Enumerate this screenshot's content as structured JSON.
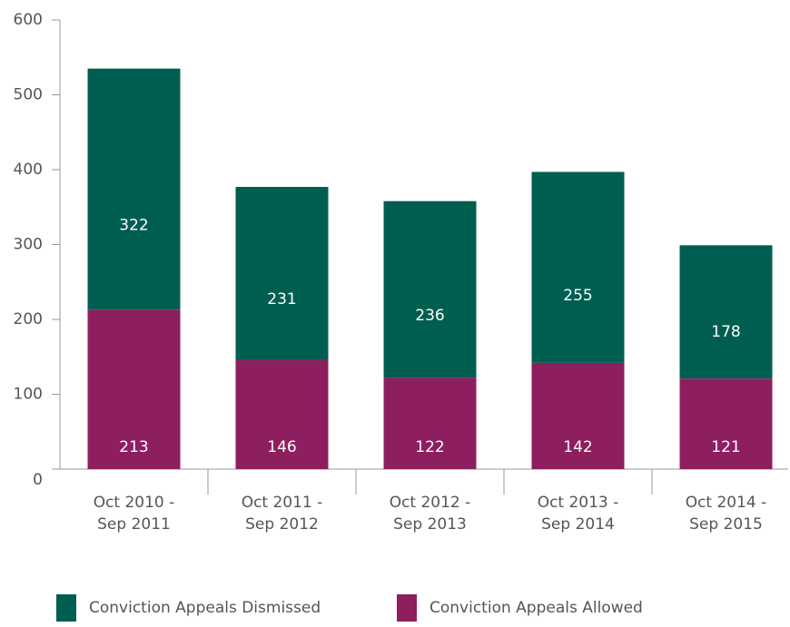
{
  "chart_data": {
    "type": "stacked_bar",
    "categories": [
      "Oct 2010 -\nSep 2011",
      "Oct 2011 -\nSep 2012",
      "Oct 2012 -\nSep 2013",
      "Oct 2013 -\nSep 2014",
      "Oct 2014 -\nSep 2015"
    ],
    "series": [
      {
        "name": "Conviction Appeals Allowed",
        "color": "#8e1f5e",
        "values": [
          213,
          146,
          122,
          142,
          121
        ]
      },
      {
        "name": "Conviction Appeals Dismissed",
        "color": "#005e50",
        "values": [
          322,
          231,
          236,
          255,
          178
        ]
      }
    ],
    "legend_order": [
      1,
      0
    ],
    "ylim": [
      0,
      600
    ],
    "yticks": [
      0,
      100,
      200,
      300,
      400,
      500,
      600
    ]
  }
}
